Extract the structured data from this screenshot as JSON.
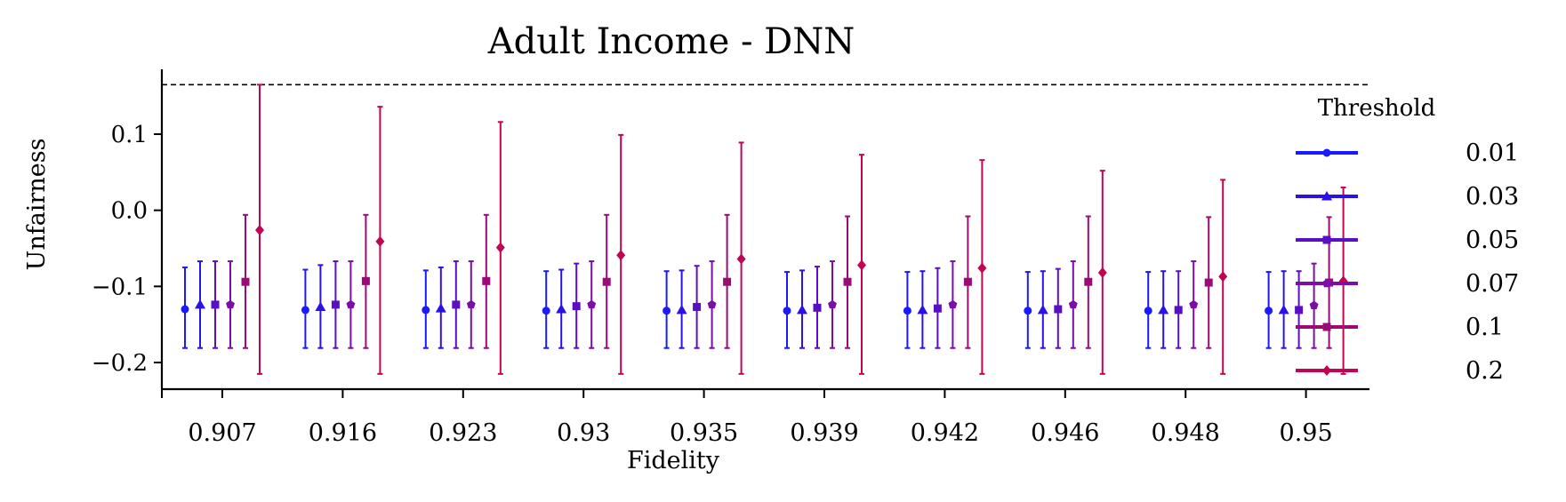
{
  "chart_data": {
    "type": "errorbar",
    "title": "Adult Income - DNN",
    "xlabel": "Fidelity",
    "ylabel": "Unfairness",
    "categories": [
      "0.907",
      "0.916",
      "0.923",
      "0.93",
      "0.935",
      "0.939",
      "0.942",
      "0.946",
      "0.948",
      "0.95"
    ],
    "ylim": [
      -0.235,
      0.18
    ],
    "yticks": [
      0.1,
      0.0,
      -0.1,
      -0.2
    ],
    "ytick_labels": [
      "0.1",
      "0.0",
      "−0.1",
      "−0.2"
    ],
    "reference_line": {
      "y": 0.165,
      "style": "dashed"
    },
    "grid": false,
    "legend": {
      "title": "Threshold",
      "placement": "right-outside"
    },
    "series": [
      {
        "name": "0.01",
        "color": "#1a1aff",
        "marker": "circle",
        "values": [
          -0.13,
          -0.131,
          -0.131,
          -0.132,
          -0.132,
          -0.132,
          -0.132,
          -0.132,
          -0.132,
          -0.132
        ],
        "lower": [
          -0.181,
          -0.181,
          -0.181,
          -0.181,
          -0.181,
          -0.181,
          -0.181,
          -0.181,
          -0.181,
          -0.181
        ],
        "upper": [
          -0.075,
          -0.078,
          -0.079,
          -0.08,
          -0.08,
          -0.081,
          -0.081,
          -0.081,
          -0.081,
          -0.081
        ]
      },
      {
        "name": "0.03",
        "color": "#2a12e6",
        "marker": "triangle",
        "values": [
          -0.124,
          -0.127,
          -0.129,
          -0.13,
          -0.131,
          -0.131,
          -0.131,
          -0.131,
          -0.131,
          -0.131
        ],
        "lower": [
          -0.181,
          -0.181,
          -0.181,
          -0.181,
          -0.181,
          -0.181,
          -0.181,
          -0.181,
          -0.181,
          -0.181
        ],
        "upper": [
          -0.067,
          -0.072,
          -0.075,
          -0.078,
          -0.079,
          -0.079,
          -0.08,
          -0.08,
          -0.08,
          -0.08
        ]
      },
      {
        "name": "0.05",
        "color": "#5a0fc4",
        "marker": "square",
        "values": [
          -0.124,
          -0.124,
          -0.124,
          -0.126,
          -0.127,
          -0.128,
          -0.129,
          -0.13,
          -0.131,
          -0.131
        ],
        "lower": [
          -0.181,
          -0.181,
          -0.181,
          -0.181,
          -0.181,
          -0.181,
          -0.181,
          -0.181,
          -0.181,
          -0.181
        ],
        "upper": [
          -0.067,
          -0.067,
          -0.067,
          -0.07,
          -0.073,
          -0.074,
          -0.076,
          -0.077,
          -0.08,
          -0.08
        ]
      },
      {
        "name": "0.07",
        "color": "#7a0ea6",
        "marker": "pentagon",
        "values": [
          -0.124,
          -0.124,
          -0.124,
          -0.124,
          -0.124,
          -0.124,
          -0.124,
          -0.124,
          -0.124,
          -0.125
        ],
        "lower": [
          -0.181,
          -0.181,
          -0.181,
          -0.181,
          -0.181,
          -0.181,
          -0.181,
          -0.181,
          -0.181,
          -0.181
        ],
        "upper": [
          -0.067,
          -0.067,
          -0.067,
          -0.067,
          -0.067,
          -0.067,
          -0.067,
          -0.067,
          -0.067,
          -0.07
        ]
      },
      {
        "name": "0.1",
        "color": "#9c0a78",
        "marker": "square",
        "values": [
          -0.094,
          -0.093,
          -0.093,
          -0.094,
          -0.094,
          -0.094,
          -0.094,
          -0.094,
          -0.095,
          -0.095
        ],
        "lower": [
          -0.181,
          -0.181,
          -0.181,
          -0.181,
          -0.181,
          -0.181,
          -0.181,
          -0.181,
          -0.181,
          -0.181
        ],
        "upper": [
          -0.006,
          -0.006,
          -0.006,
          -0.006,
          -0.006,
          -0.008,
          -0.008,
          -0.008,
          -0.009,
          -0.009
        ]
      },
      {
        "name": "0.2",
        "color": "#c20552",
        "marker": "diamond",
        "values": [
          -0.026,
          -0.041,
          -0.049,
          -0.059,
          -0.064,
          -0.072,
          -0.076,
          -0.082,
          -0.087,
          -0.093
        ],
        "lower": [
          -0.215,
          -0.215,
          -0.215,
          -0.215,
          -0.215,
          -0.215,
          -0.215,
          -0.215,
          -0.215,
          -0.215
        ],
        "upper": [
          0.165,
          0.136,
          0.116,
          0.099,
          0.089,
          0.073,
          0.066,
          0.052,
          0.04,
          0.03
        ]
      }
    ]
  }
}
